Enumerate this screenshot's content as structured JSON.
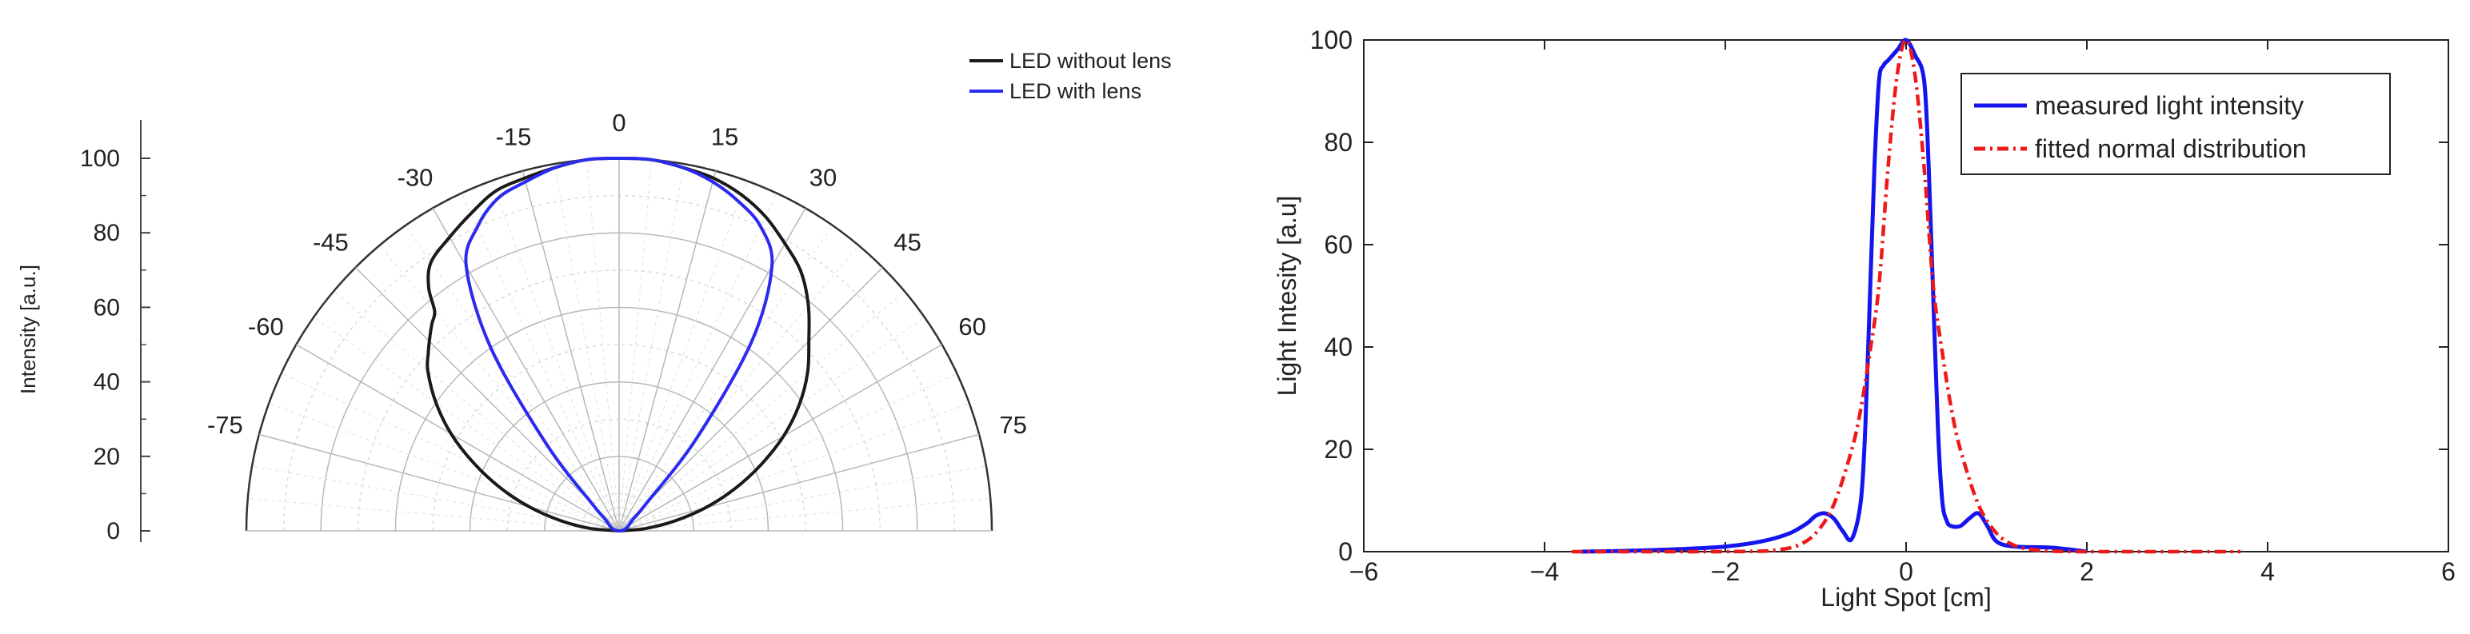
{
  "chart_data": [
    {
      "type": "polar",
      "title": "",
      "ylabel": "Intensity [a.u.]",
      "r_range": [
        0,
        100
      ],
      "r_ticks": [
        "0",
        "20",
        "40",
        "60",
        "80",
        "100"
      ],
      "theta_range_deg": [
        -90,
        90
      ],
      "theta_ticks": [
        "-75",
        "-60",
        "-45",
        "-30",
        "-15",
        "0",
        "15",
        "30",
        "45",
        "60",
        "75"
      ],
      "grid": true,
      "legend_position": "top-right",
      "colors": {
        "without_lens": "#1a1a1a",
        "with_lens": "#2b2bf0"
      },
      "series": [
        {
          "name": "LED without lens",
          "theta": [
            -90,
            -85,
            -80,
            -75,
            -70,
            -65,
            -60,
            -55,
            -50,
            -47,
            -44,
            -42,
            -40,
            -38,
            -35,
            -30,
            -25,
            -20,
            -15,
            -10,
            -5,
            0,
            5,
            10,
            15,
            20,
            25,
            30,
            35,
            40,
            45,
            50,
            55,
            60,
            65,
            70,
            75,
            80,
            85,
            90
          ],
          "r": [
            0,
            8,
            16,
            25,
            34,
            43,
            52,
            60,
            67,
            70,
            73,
            75,
            77,
            83,
            88,
            91,
            94,
            97,
            98,
            99,
            100,
            100,
            100,
            99,
            98,
            96,
            93,
            89,
            85,
            79,
            72,
            66,
            59,
            51,
            42,
            33,
            24,
            15,
            7,
            0
          ]
        },
        {
          "name": "LED with lens",
          "theta": [
            -90,
            -80,
            -70,
            -60,
            -50,
            -45,
            -40,
            -35,
            -30,
            -25,
            -20,
            -15,
            -10,
            -5,
            0,
            5,
            10,
            15,
            20,
            25,
            30,
            35,
            40,
            45,
            50,
            60,
            70,
            80,
            90
          ],
          "r": [
            0,
            1,
            2,
            3,
            5,
            10,
            30,
            60,
            82,
            90,
            95,
            97,
            99,
            100,
            100,
            100,
            99,
            97,
            94,
            90,
            82,
            62,
            32,
            10,
            5,
            3,
            2,
            1,
            0
          ]
        }
      ]
    },
    {
      "type": "line",
      "title": "",
      "xlabel": "Light Spot [cm]",
      "ylabel": "Light Intesity [a.u]",
      "xlim": [
        -6,
        6
      ],
      "ylim": [
        0,
        100
      ],
      "x_ticks": [
        "−6",
        "−4",
        "−2",
        "0",
        "2",
        "4",
        "6"
      ],
      "y_ticks": [
        "0",
        "20",
        "40",
        "60",
        "80",
        "100"
      ],
      "grid": false,
      "legend_position": "top-right",
      "colors": {
        "measured": "#1515ee",
        "fitted": "#ee1a1a"
      },
      "series": [
        {
          "name": "measured light intensity",
          "style": "solid",
          "x": [
            -3.6,
            -3.0,
            -2.5,
            -2.0,
            -1.6,
            -1.3,
            -1.1,
            -1.0,
            -0.9,
            -0.8,
            -0.7,
            -0.6,
            -0.5,
            -0.45,
            -0.4,
            -0.35,
            -0.3,
            -0.25,
            -0.2,
            -0.1,
            0.0,
            0.1,
            0.2,
            0.25,
            0.3,
            0.35,
            0.4,
            0.45,
            0.5,
            0.6,
            0.7,
            0.8,
            0.9,
            1.0,
            1.2,
            1.6,
            2.0
          ],
          "y": [
            0,
            0.2,
            0.5,
            1.0,
            2.0,
            3.5,
            5.5,
            7.0,
            7.5,
            6.5,
            4.0,
            2.5,
            10,
            25,
            50,
            75,
            92,
            95,
            96,
            98,
            100,
            97,
            92,
            75,
            50,
            25,
            10,
            6,
            5,
            5,
            6.5,
            7.5,
            5,
            2,
            1,
            0.8,
            0
          ]
        },
        {
          "name": "fitted normal distribution",
          "style": "dashdot",
          "x": [
            -3.7,
            -3.0,
            -2.5,
            -2.0,
            -1.6,
            -1.4,
            -1.2,
            -1.0,
            -0.8,
            -0.6,
            -0.5,
            -0.4,
            -0.3,
            -0.2,
            -0.1,
            0.0,
            0.1,
            0.2,
            0.3,
            0.4,
            0.5,
            0.6,
            0.8,
            1.0,
            1.2,
            1.4,
            1.6,
            2.0,
            2.5,
            3.0,
            3.7
          ],
          "y": [
            0,
            0,
            0,
            0,
            0.1,
            0.4,
            1.2,
            3.6,
            9.2,
            20,
            28,
            39,
            52,
            75,
            93,
            100,
            93,
            75,
            52,
            39,
            28,
            20,
            9.2,
            3.6,
            1.2,
            0.4,
            0.1,
            0,
            0,
            0,
            0
          ]
        }
      ]
    }
  ]
}
